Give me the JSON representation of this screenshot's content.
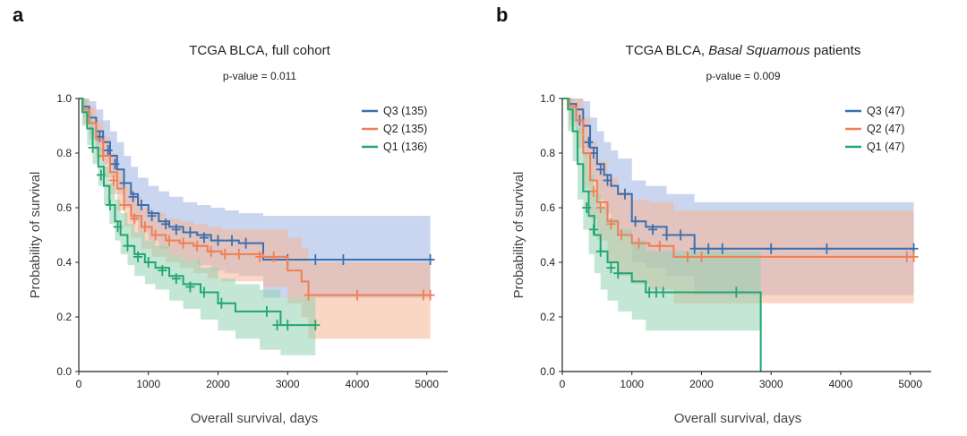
{
  "colors": {
    "Q3": "#3a6fb0",
    "Q2": "#ef7f55",
    "Q1": "#21a671",
    "Q3_band": "#9fb4e3",
    "Q2_band": "#f6b493",
    "Q1_band": "#93d1b2"
  },
  "chart_data": [
    {
      "panel_label": "a",
      "type": "line",
      "title": "TCGA BLCA, full cohort",
      "title_plain": "TCGA BLCA, full cohort",
      "title_italic": "",
      "title_suffix": "",
      "subtitle": "p-value = 0.011",
      "xlabel": "Overall survival, days",
      "ylabel": "Probability of survival",
      "xlim": [
        0,
        5300
      ],
      "ylim": [
        0,
        1.0
      ],
      "xticks": [
        0,
        1000,
        2000,
        3000,
        4000,
        5000
      ],
      "yticks": [
        0.0,
        0.2,
        0.4,
        0.6,
        0.8,
        1.0
      ],
      "legend_position": "top-right",
      "series": [
        {
          "name": "Q3 (135)",
          "key": "Q3",
          "x": [
            0,
            60,
            150,
            250,
            350,
            450,
            550,
            650,
            750,
            850,
            1000,
            1150,
            1300,
            1500,
            1700,
            1900,
            2100,
            2300,
            2650,
            3000,
            5050
          ],
          "y": [
            1.0,
            0.97,
            0.93,
            0.88,
            0.84,
            0.79,
            0.74,
            0.69,
            0.65,
            0.61,
            0.58,
            0.55,
            0.53,
            0.51,
            0.5,
            0.48,
            0.48,
            0.47,
            0.41,
            0.41,
            0.41
          ],
          "upper": [
            1.0,
            1.0,
            0.99,
            0.96,
            0.92,
            0.88,
            0.84,
            0.79,
            0.75,
            0.71,
            0.68,
            0.66,
            0.64,
            0.62,
            0.61,
            0.6,
            0.59,
            0.58,
            0.57,
            0.57,
            0.57
          ],
          "lower": [
            1.0,
            0.93,
            0.87,
            0.81,
            0.76,
            0.71,
            0.65,
            0.6,
            0.55,
            0.51,
            0.48,
            0.45,
            0.43,
            0.41,
            0.39,
            0.37,
            0.36,
            0.35,
            0.27,
            0.27,
            0.27
          ],
          "censor_x": [
            300,
            420,
            520,
            650,
            780,
            900,
            1050,
            1250,
            1400,
            1600,
            1800,
            2000,
            2200,
            2400,
            3000,
            3400,
            3800,
            5050
          ],
          "censor_y": [
            0.86,
            0.81,
            0.76,
            0.69,
            0.64,
            0.61,
            0.57,
            0.54,
            0.52,
            0.51,
            0.49,
            0.48,
            0.48,
            0.47,
            0.41,
            0.41,
            0.41,
            0.41
          ]
        },
        {
          "name": "Q2 (135)",
          "key": "Q2",
          "x": [
            0,
            60,
            150,
            250,
            350,
            450,
            550,
            650,
            750,
            900,
            1050,
            1250,
            1450,
            1650,
            1850,
            2050,
            2650,
            3000,
            3200,
            3300,
            5050
          ],
          "y": [
            1.0,
            0.96,
            0.91,
            0.85,
            0.79,
            0.73,
            0.67,
            0.61,
            0.57,
            0.53,
            0.5,
            0.48,
            0.47,
            0.46,
            0.44,
            0.43,
            0.42,
            0.37,
            0.33,
            0.28,
            0.28
          ],
          "upper": [
            1.0,
            1.0,
            0.97,
            0.92,
            0.86,
            0.8,
            0.74,
            0.68,
            0.64,
            0.6,
            0.58,
            0.56,
            0.55,
            0.54,
            0.53,
            0.52,
            0.52,
            0.49,
            0.45,
            0.4,
            0.4
          ],
          "lower": [
            1.0,
            0.91,
            0.85,
            0.78,
            0.71,
            0.65,
            0.59,
            0.53,
            0.49,
            0.45,
            0.42,
            0.4,
            0.38,
            0.36,
            0.34,
            0.33,
            0.31,
            0.25,
            0.2,
            0.12,
            0.12
          ],
          "censor_x": [
            350,
            500,
            650,
            800,
            950,
            1100,
            1300,
            1500,
            1700,
            1900,
            2100,
            2300,
            2600,
            2800,
            3300,
            4000,
            4950,
            5050
          ],
          "censor_y": [
            0.79,
            0.7,
            0.61,
            0.56,
            0.53,
            0.5,
            0.48,
            0.47,
            0.46,
            0.44,
            0.43,
            0.43,
            0.42,
            0.42,
            0.28,
            0.28,
            0.28,
            0.28
          ]
        },
        {
          "name": "Q1 (136)",
          "key": "Q1",
          "x": [
            0,
            50,
            120,
            200,
            280,
            360,
            440,
            520,
            600,
            700,
            800,
            950,
            1100,
            1300,
            1500,
            1750,
            2000,
            2250,
            2600,
            2900,
            3400
          ],
          "y": [
            1.0,
            0.95,
            0.89,
            0.82,
            0.75,
            0.68,
            0.61,
            0.55,
            0.5,
            0.46,
            0.43,
            0.4,
            0.38,
            0.35,
            0.32,
            0.29,
            0.25,
            0.22,
            0.22,
            0.17,
            0.17
          ],
          "upper": [
            1.0,
            1.0,
            0.95,
            0.89,
            0.82,
            0.75,
            0.69,
            0.63,
            0.58,
            0.54,
            0.51,
            0.48,
            0.46,
            0.43,
            0.41,
            0.38,
            0.34,
            0.32,
            0.3,
            0.27,
            0.27
          ],
          "lower": [
            1.0,
            0.9,
            0.83,
            0.76,
            0.68,
            0.61,
            0.54,
            0.48,
            0.43,
            0.39,
            0.35,
            0.32,
            0.3,
            0.26,
            0.23,
            0.19,
            0.15,
            0.12,
            0.08,
            0.06,
            0.06
          ],
          "censor_x": [
            200,
            320,
            450,
            560,
            700,
            850,
            1000,
            1200,
            1400,
            1600,
            1800,
            2050,
            2700,
            2850,
            3000,
            3400
          ],
          "censor_y": [
            0.82,
            0.72,
            0.61,
            0.53,
            0.46,
            0.42,
            0.4,
            0.37,
            0.34,
            0.31,
            0.29,
            0.25,
            0.22,
            0.17,
            0.17,
            0.17
          ]
        }
      ]
    },
    {
      "panel_label": "b",
      "type": "line",
      "title": "TCGA BLCA, Basal Squamous patients",
      "title_plain": "TCGA BLCA, ",
      "title_italic": "Basal Squamous",
      "title_suffix": " patients",
      "subtitle": "p-value = 0.009",
      "xlabel": "Overall survival, days",
      "ylabel": "Probability of survival",
      "xlim": [
        0,
        5300
      ],
      "ylim": [
        0,
        1.0
      ],
      "xticks": [
        0,
        1000,
        2000,
        3000,
        4000,
        5000
      ],
      "yticks": [
        0.0,
        0.2,
        0.4,
        0.6,
        0.8,
        1.0
      ],
      "legend_position": "top-right",
      "series": [
        {
          "name": "Q3 (47)",
          "key": "Q3",
          "x": [
            0,
            100,
            200,
            300,
            400,
            500,
            600,
            700,
            800,
            1000,
            1200,
            1500,
            1900,
            5050
          ],
          "y": [
            1.0,
            0.98,
            0.96,
            0.9,
            0.82,
            0.76,
            0.72,
            0.68,
            0.65,
            0.55,
            0.53,
            0.5,
            0.45,
            0.45
          ],
          "upper": [
            1.0,
            1.0,
            1.0,
            0.99,
            0.93,
            0.88,
            0.84,
            0.81,
            0.78,
            0.7,
            0.68,
            0.65,
            0.62,
            0.62
          ],
          "lower": [
            1.0,
            0.92,
            0.87,
            0.79,
            0.7,
            0.63,
            0.58,
            0.54,
            0.5,
            0.4,
            0.38,
            0.35,
            0.28,
            0.28
          ],
          "censor_x": [
            250,
            380,
            450,
            550,
            650,
            900,
            1050,
            1300,
            1500,
            1700,
            1900,
            2100,
            2300,
            3000,
            3800,
            5050
          ],
          "censor_y": [
            0.92,
            0.84,
            0.8,
            0.74,
            0.7,
            0.65,
            0.55,
            0.52,
            0.5,
            0.5,
            0.45,
            0.45,
            0.45,
            0.45,
            0.45,
            0.45
          ]
        },
        {
          "name": "Q2 (47)",
          "key": "Q2",
          "x": [
            0,
            100,
            200,
            300,
            400,
            500,
            650,
            800,
            1000,
            1250,
            1600,
            1800,
            5050
          ],
          "y": [
            1.0,
            0.97,
            0.92,
            0.8,
            0.7,
            0.62,
            0.55,
            0.5,
            0.47,
            0.46,
            0.42,
            0.42,
            0.42
          ],
          "upper": [
            1.0,
            1.0,
            1.0,
            0.93,
            0.84,
            0.77,
            0.71,
            0.66,
            0.63,
            0.62,
            0.59,
            0.59,
            0.59
          ],
          "lower": [
            1.0,
            0.9,
            0.82,
            0.67,
            0.56,
            0.48,
            0.4,
            0.35,
            0.32,
            0.3,
            0.25,
            0.25,
            0.25
          ],
          "censor_x": [
            450,
            550,
            700,
            850,
            1100,
            1400,
            1800,
            2000,
            4950,
            5050
          ],
          "censor_y": [
            0.66,
            0.6,
            0.54,
            0.5,
            0.47,
            0.46,
            0.42,
            0.42,
            0.42,
            0.42
          ],
          "censor_y_note": ""
        },
        {
          "name": "Q1 (47)",
          "key": "Q1",
          "x": [
            0,
            80,
            150,
            220,
            300,
            380,
            460,
            550,
            650,
            800,
            1000,
            1200,
            2850,
            2851
          ],
          "y": [
            1.0,
            0.96,
            0.88,
            0.76,
            0.66,
            0.57,
            0.5,
            0.44,
            0.4,
            0.36,
            0.33,
            0.29,
            0.29,
            0.0
          ],
          "upper": [
            1.0,
            1.0,
            0.97,
            0.89,
            0.8,
            0.72,
            0.65,
            0.6,
            0.56,
            0.52,
            0.48,
            0.44,
            0.44,
            0.44
          ],
          "lower": [
            1.0,
            0.88,
            0.77,
            0.63,
            0.52,
            0.43,
            0.36,
            0.3,
            0.26,
            0.22,
            0.19,
            0.15,
            0.15,
            0.15
          ],
          "censor_x": [
            350,
            450,
            550,
            700,
            800,
            1250,
            1350,
            1450,
            2500
          ],
          "censor_y": [
            0.6,
            0.52,
            0.44,
            0.38,
            0.36,
            0.29,
            0.29,
            0.29,
            0.29
          ]
        }
      ]
    }
  ]
}
